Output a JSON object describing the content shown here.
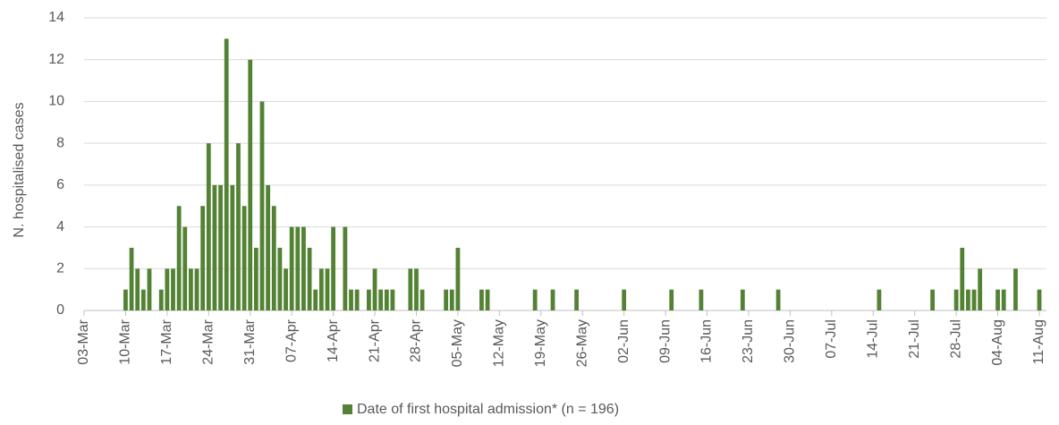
{
  "chart_data": {
    "type": "bar",
    "y_label": "N. hospitalised cases",
    "categories": [
      "03-Mar",
      null,
      null,
      null,
      null,
      null,
      null,
      "10-Mar",
      null,
      null,
      null,
      null,
      null,
      null,
      "17-Mar",
      null,
      null,
      null,
      null,
      null,
      null,
      "24-Mar",
      null,
      null,
      null,
      null,
      null,
      null,
      "31-Mar",
      null,
      null,
      null,
      null,
      null,
      null,
      "07-Apr",
      null,
      null,
      null,
      null,
      null,
      null,
      "14-Apr",
      null,
      null,
      null,
      null,
      null,
      null,
      "21-Apr",
      null,
      null,
      null,
      null,
      null,
      null,
      "28-Apr",
      null,
      null,
      null,
      null,
      null,
      null,
      "05-May",
      null,
      null,
      null,
      null,
      null,
      null,
      "12-May",
      null,
      null,
      null,
      null,
      null,
      null,
      "19-May",
      null,
      null,
      null,
      null,
      null,
      null,
      "26-May",
      null,
      null,
      null,
      null,
      null,
      null,
      "02-Jun",
      null,
      null,
      null,
      null,
      null,
      null,
      "09-Jun",
      null,
      null,
      null,
      null,
      null,
      null,
      "16-Jun",
      null,
      null,
      null,
      null,
      null,
      null,
      "23-Jun",
      null,
      null,
      null,
      null,
      null,
      null,
      "30-Jun",
      null,
      null,
      null,
      null,
      null,
      null,
      "07-Jul",
      null,
      null,
      null,
      null,
      null,
      null,
      "14-Jul",
      null,
      null,
      null,
      null,
      null,
      null,
      "21-Jul",
      null,
      null,
      null,
      null,
      null,
      null,
      "28-Jul",
      null,
      null,
      null,
      null,
      null,
      null,
      "04-Aug",
      null,
      null,
      null,
      null,
      null,
      null,
      "11-Aug"
    ],
    "series": [
      {
        "name": "Date of first hospital admission* (n = 196)",
        "color": "#548235",
        "values": [
          0,
          0,
          0,
          0,
          0,
          0,
          0,
          1,
          3,
          2,
          1,
          2,
          0,
          1,
          2,
          2,
          5,
          4,
          2,
          2,
          5,
          8,
          6,
          6,
          13,
          6,
          8,
          5,
          12,
          3,
          10,
          6,
          5,
          3,
          2,
          4,
          4,
          4,
          3,
          1,
          2,
          2,
          4,
          0,
          4,
          1,
          1,
          0,
          1,
          2,
          1,
          1,
          1,
          0,
          0,
          2,
          2,
          1,
          0,
          0,
          0,
          1,
          1,
          3,
          0,
          0,
          0,
          1,
          1,
          0,
          0,
          0,
          0,
          0,
          0,
          0,
          1,
          0,
          0,
          1,
          0,
          0,
          0,
          1,
          0,
          0,
          0,
          0,
          0,
          0,
          0,
          1,
          0,
          0,
          0,
          0,
          0,
          0,
          0,
          1,
          0,
          0,
          0,
          0,
          1,
          0,
          0,
          0,
          0,
          0,
          0,
          1,
          0,
          0,
          0,
          0,
          0,
          1,
          0,
          0,
          0,
          0,
          0,
          0,
          0,
          0,
          0,
          0,
          0,
          0,
          0,
          0,
          0,
          0,
          1,
          0,
          0,
          0,
          0,
          0,
          0,
          0,
          0,
          1,
          0,
          0,
          0,
          1,
          3,
          1,
          1,
          2,
          0,
          0,
          1,
          1,
          0,
          2,
          0,
          0,
          0,
          1
        ]
      }
    ],
    "ylim": [
      0,
      14
    ],
    "yticks": [
      0,
      2,
      4,
      6,
      8,
      10,
      12,
      14
    ],
    "grid": true,
    "legend": "bottom"
  }
}
